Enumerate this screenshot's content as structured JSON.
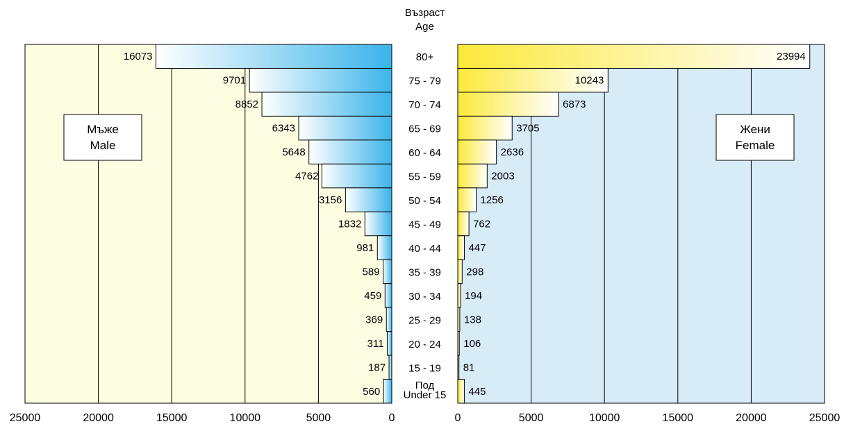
{
  "chart_data": {
    "type": "bar",
    "subtype": "population-pyramid",
    "age_axis_title": [
      "Възраст",
      "Age"
    ],
    "categories": [
      [
        "80+"
      ],
      [
        "75 - 79"
      ],
      [
        "70 - 74"
      ],
      [
        "65 - 69"
      ],
      [
        "60 - 64"
      ],
      [
        "55 - 59"
      ],
      [
        "50 - 54"
      ],
      [
        "45 - 49"
      ],
      [
        "40 - 44"
      ],
      [
        "35 - 39"
      ],
      [
        "30 - 34"
      ],
      [
        "25 - 29"
      ],
      [
        "20 - 24"
      ],
      [
        "15 - 19"
      ],
      [
        "Под",
        "Under 15"
      ]
    ],
    "series": [
      {
        "name": [
          "Мъже",
          "Male"
        ],
        "side": "left",
        "values": [
          16073,
          9701,
          8852,
          6343,
          5648,
          4762,
          3156,
          1832,
          981,
          589,
          459,
          369,
          311,
          187,
          560
        ],
        "panel_color": "#fdfde2",
        "bar_gradient": [
          "#ffffff",
          "#3ab4ea"
        ]
      },
      {
        "name": [
          "Жени",
          "Female"
        ],
        "side": "right",
        "values": [
          23994,
          10243,
          6873,
          3705,
          2636,
          2003,
          1256,
          762,
          447,
          298,
          194,
          138,
          106,
          81,
          445
        ],
        "panel_color": "#d8ecf8",
        "bar_gradient": [
          "#fbe93a",
          "#ffffff"
        ]
      }
    ],
    "xlim": [
      0,
      25000
    ],
    "x_ticks": [
      "0",
      "5000",
      "10000",
      "15000",
      "20000",
      "25000"
    ],
    "grid": true
  }
}
